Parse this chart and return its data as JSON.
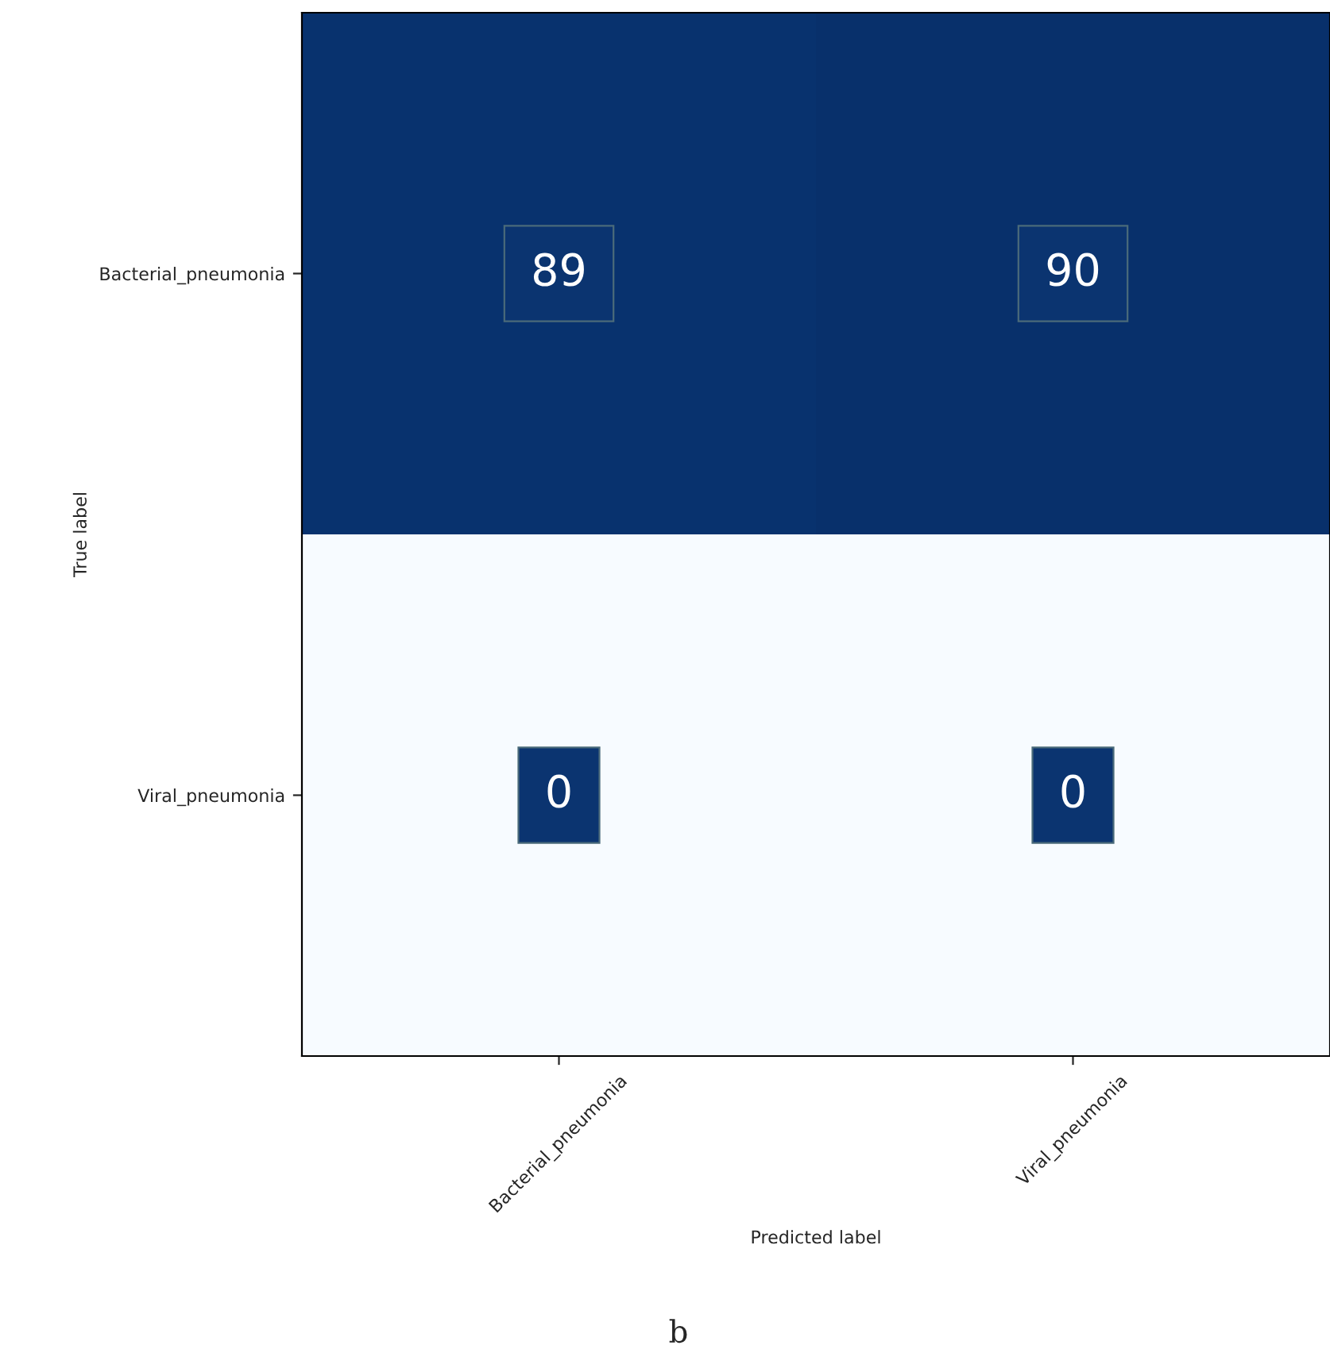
{
  "chart_data": {
    "type": "heatmap",
    "categories": [
      "Bacterial_pneumonia",
      "Viral_pneumonia"
    ],
    "y_categories": [
      "Bacterial_pneumonia",
      "Viral_pneumonia"
    ],
    "cells": [
      [
        89,
        90
      ],
      [
        0,
        0
      ]
    ],
    "xlabel": "Predicted label",
    "ylabel": "True label",
    "data_labels": true,
    "annotations": [
      "b"
    ]
  }
}
